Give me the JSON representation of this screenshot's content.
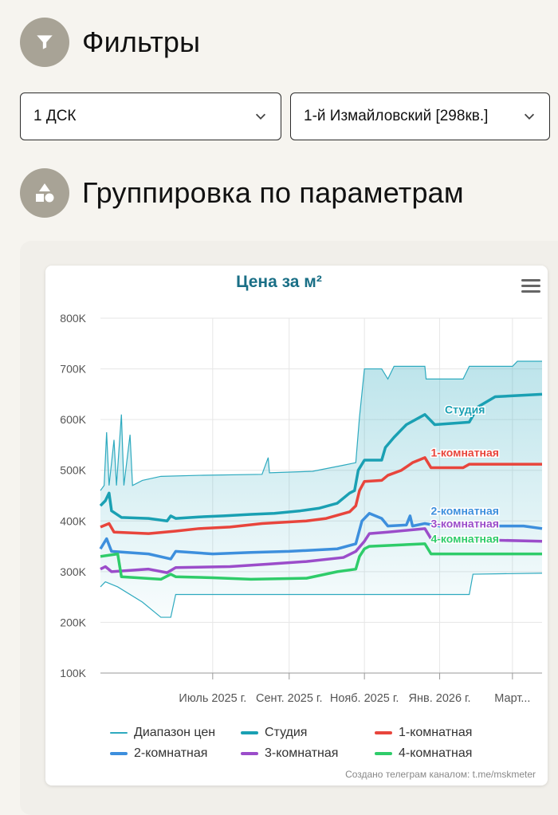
{
  "filters": {
    "title": "Фильтры",
    "icon": "filter-icon",
    "selects": [
      {
        "value": "1 ДСК"
      },
      {
        "value": "1-й Измайловский [298кв.]"
      }
    ]
  },
  "grouping": {
    "title": "Группировка по параметрам",
    "icon": "shapes-icon"
  },
  "chart_data": {
    "type": "line",
    "title": "Цена за м²",
    "ylim": [
      100000,
      800000
    ],
    "y_ticks": [
      {
        "value": 100000,
        "label": "100K"
      },
      {
        "value": 200000,
        "label": "200K"
      },
      {
        "value": 300000,
        "label": "300K"
      },
      {
        "value": 400000,
        "label": "400K"
      },
      {
        "value": 500000,
        "label": "500K"
      },
      {
        "value": 600000,
        "label": "600K"
      },
      {
        "value": 700000,
        "label": "700K"
      },
      {
        "value": 800000,
        "label": "800K"
      }
    ],
    "xlim": [
      "2025-04-01",
      "2026-03-25"
    ],
    "x_ticks": [
      {
        "date": "2025-07-01",
        "label": "Июль 2025 г."
      },
      {
        "date": "2025-09-01",
        "label": "Сент. 2025 г."
      },
      {
        "date": "2025-11-01",
        "label": "Нояб. 2025 г."
      },
      {
        "date": "2026-01-01",
        "label": "Янв. 2026 г."
      },
      {
        "date": "2026-03-01",
        "label": "Март..."
      }
    ],
    "grid": true,
    "legend_position": "bottom",
    "range": {
      "name": "Диапазон цен",
      "color": "#2eaabf",
      "upper": [
        [
          "2025-04-01",
          460000
        ],
        [
          "2025-04-04",
          470000
        ],
        [
          "2025-04-06",
          575000
        ],
        [
          "2025-04-08",
          470000
        ],
        [
          "2025-04-12",
          560000
        ],
        [
          "2025-04-14",
          470000
        ],
        [
          "2025-04-18",
          610000
        ],
        [
          "2025-04-20",
          470000
        ],
        [
          "2025-04-25",
          570000
        ],
        [
          "2025-04-27",
          470000
        ],
        [
          "2025-05-05",
          480000
        ],
        [
          "2025-05-20",
          488000
        ],
        [
          "2025-06-20",
          490000
        ],
        [
          "2025-08-10",
          492000
        ],
        [
          "2025-08-15",
          525000
        ],
        [
          "2025-08-16",
          495000
        ],
        [
          "2025-09-20",
          498000
        ],
        [
          "2025-10-15",
          510000
        ],
        [
          "2025-10-25",
          515000
        ],
        [
          "2025-10-28",
          605000
        ],
        [
          "2025-11-01",
          700000
        ],
        [
          "2025-11-15",
          700000
        ],
        [
          "2025-11-20",
          680000
        ],
        [
          "2025-11-25",
          705000
        ],
        [
          "2025-12-20",
          705000
        ],
        [
          "2025-12-21",
          680000
        ],
        [
          "2026-01-20",
          680000
        ],
        [
          "2026-01-25",
          705000
        ],
        [
          "2026-03-01",
          705000
        ],
        [
          "2026-03-05",
          715000
        ],
        [
          "2026-03-25",
          715000
        ]
      ],
      "lower": [
        [
          "2025-04-01",
          270000
        ],
        [
          "2025-04-05",
          280000
        ],
        [
          "2025-04-15",
          270000
        ],
        [
          "2025-05-05",
          240000
        ],
        [
          "2025-05-20",
          210000
        ],
        [
          "2025-05-28",
          210000
        ],
        [
          "2025-06-01",
          255000
        ],
        [
          "2025-08-01",
          255000
        ],
        [
          "2025-10-01",
          255000
        ],
        [
          "2026-01-10",
          255000
        ],
        [
          "2026-01-25",
          255000
        ],
        [
          "2026-01-28",
          295000
        ],
        [
          "2026-03-25",
          297000
        ]
      ]
    },
    "series": [
      {
        "name": "Студия",
        "color": "#1aa0b3",
        "label_at": "2026-01-15",
        "points": [
          [
            "2025-04-01",
            430000
          ],
          [
            "2025-04-05",
            440000
          ],
          [
            "2025-04-08",
            455000
          ],
          [
            "2025-04-10",
            420000
          ],
          [
            "2025-04-18",
            407000
          ],
          [
            "2025-05-10",
            405000
          ],
          [
            "2025-05-25",
            400000
          ],
          [
            "2025-05-28",
            410000
          ],
          [
            "2025-06-01",
            405000
          ],
          [
            "2025-06-20",
            408000
          ],
          [
            "2025-07-10",
            410000
          ],
          [
            "2025-08-01",
            413000
          ],
          [
            "2025-08-20",
            415000
          ],
          [
            "2025-09-10",
            420000
          ],
          [
            "2025-09-25",
            425000
          ],
          [
            "2025-10-10",
            435000
          ],
          [
            "2025-10-20",
            455000
          ],
          [
            "2025-10-24",
            460000
          ],
          [
            "2025-10-27",
            500000
          ],
          [
            "2025-11-01",
            520000
          ],
          [
            "2025-11-15",
            520000
          ],
          [
            "2025-11-18",
            545000
          ],
          [
            "2025-11-25",
            565000
          ],
          [
            "2025-12-05",
            590000
          ],
          [
            "2025-12-20",
            610000
          ],
          [
            "2025-12-28",
            590000
          ],
          [
            "2026-01-25",
            595000
          ],
          [
            "2026-02-01",
            625000
          ],
          [
            "2026-02-15",
            645000
          ],
          [
            "2026-03-25",
            650000
          ]
        ]
      },
      {
        "name": "1-комнатная",
        "color": "#e8453c",
        "label_at": "2026-01-15",
        "points": [
          [
            "2025-04-01",
            388000
          ],
          [
            "2025-04-08",
            395000
          ],
          [
            "2025-04-12",
            378000
          ],
          [
            "2025-05-10",
            375000
          ],
          [
            "2025-06-01",
            380000
          ],
          [
            "2025-06-20",
            385000
          ],
          [
            "2025-07-15",
            388000
          ],
          [
            "2025-08-10",
            395000
          ],
          [
            "2025-09-15",
            400000
          ],
          [
            "2025-10-01",
            405000
          ],
          [
            "2025-10-20",
            418000
          ],
          [
            "2025-10-25",
            430000
          ],
          [
            "2025-10-28",
            460000
          ],
          [
            "2025-11-01",
            478000
          ],
          [
            "2025-11-15",
            480000
          ],
          [
            "2025-11-20",
            490000
          ],
          [
            "2025-12-01",
            500000
          ],
          [
            "2025-12-10",
            515000
          ],
          [
            "2025-12-20",
            525000
          ],
          [
            "2025-12-25",
            505000
          ],
          [
            "2026-01-20",
            505000
          ],
          [
            "2026-01-25",
            512000
          ],
          [
            "2026-03-25",
            512000
          ]
        ]
      },
      {
        "name": "2-комнатная",
        "color": "#3d8fdd",
        "label_at": "2026-01-15",
        "points": [
          [
            "2025-04-01",
            345000
          ],
          [
            "2025-04-06",
            365000
          ],
          [
            "2025-04-10",
            340000
          ],
          [
            "2025-05-10",
            335000
          ],
          [
            "2025-05-28",
            325000
          ],
          [
            "2025-06-01",
            340000
          ],
          [
            "2025-07-01",
            335000
          ],
          [
            "2025-08-01",
            338000
          ],
          [
            "2025-09-01",
            340000
          ],
          [
            "2025-10-10",
            345000
          ],
          [
            "2025-10-25",
            355000
          ],
          [
            "2025-10-30",
            400000
          ],
          [
            "2025-11-05",
            415000
          ],
          [
            "2025-11-15",
            405000
          ],
          [
            "2025-11-20",
            390000
          ],
          [
            "2025-12-05",
            392000
          ],
          [
            "2025-12-08",
            410000
          ],
          [
            "2025-12-10",
            390000
          ],
          [
            "2025-12-20",
            395000
          ],
          [
            "2026-01-01",
            390000
          ],
          [
            "2026-03-10",
            390000
          ],
          [
            "2026-03-25",
            385000
          ]
        ]
      },
      {
        "name": "3-комнатная",
        "color": "#9b4dca",
        "label_at": "2026-01-15",
        "points": [
          [
            "2025-04-01",
            305000
          ],
          [
            "2025-04-05",
            310000
          ],
          [
            "2025-04-10",
            300000
          ],
          [
            "2025-05-10",
            305000
          ],
          [
            "2025-05-25",
            298000
          ],
          [
            "2025-06-01",
            308000
          ],
          [
            "2025-07-15",
            310000
          ],
          [
            "2025-08-15",
            315000
          ],
          [
            "2025-09-15",
            320000
          ],
          [
            "2025-10-15",
            328000
          ],
          [
            "2025-10-25",
            340000
          ],
          [
            "2025-11-01",
            360000
          ],
          [
            "2025-11-05",
            375000
          ],
          [
            "2025-11-20",
            378000
          ],
          [
            "2025-12-20",
            385000
          ],
          [
            "2025-12-25",
            365000
          ],
          [
            "2026-03-25",
            360000
          ]
        ]
      },
      {
        "name": "4-комнатная",
        "color": "#2fcc6a",
        "label_at": "2026-01-15",
        "points": [
          [
            "2025-04-01",
            330000
          ],
          [
            "2025-04-15",
            335000
          ],
          [
            "2025-04-18",
            290000
          ],
          [
            "2025-05-20",
            285000
          ],
          [
            "2025-05-28",
            295000
          ],
          [
            "2025-06-01",
            290000
          ],
          [
            "2025-07-01",
            288000
          ],
          [
            "2025-08-01",
            285000
          ],
          [
            "2025-09-15",
            287000
          ],
          [
            "2025-10-10",
            300000
          ],
          [
            "2025-10-25",
            305000
          ],
          [
            "2025-10-28",
            330000
          ],
          [
            "2025-11-01",
            345000
          ],
          [
            "2025-11-05",
            350000
          ],
          [
            "2025-12-20",
            355000
          ],
          [
            "2025-12-25",
            335000
          ],
          [
            "2026-03-25",
            335000
          ]
        ]
      }
    ]
  },
  "credit": "Создано телеграм каналом: t.me/mskmeter"
}
